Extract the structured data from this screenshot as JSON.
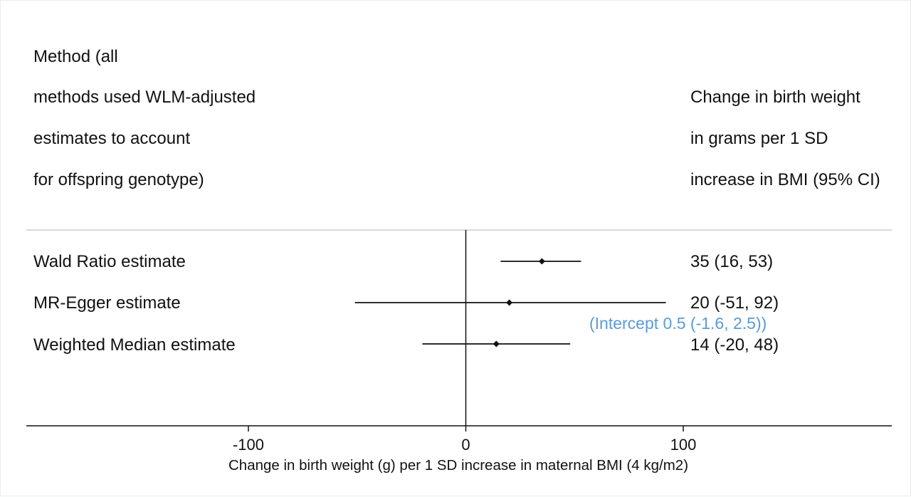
{
  "chart_data": {
    "type": "forest",
    "header_left": [
      "Method (all",
      "methods used WLM-adjusted",
      "estimates to account",
      "for offspring genotype)"
    ],
    "header_right": [
      "Change in birth weight",
      "in grams per 1 SD",
      "increase in BMI (95% CI)"
    ],
    "rows": [
      {
        "label": "Wald Ratio estimate",
        "estimate": 35,
        "ci_low": 16,
        "ci_high": 53,
        "text": "35 (16, 53)"
      },
      {
        "label": "MR-Egger estimate",
        "estimate": 20,
        "ci_low": -51,
        "ci_high": 92,
        "text": "20 (-51, 92)",
        "note": "(Intercept 0.5 (-1.6, 2.5))"
      },
      {
        "label": "Weighted Median estimate",
        "estimate": 14,
        "ci_low": -20,
        "ci_high": 48,
        "text": "14 (-20, 48)"
      }
    ],
    "x_ticks": [
      -100,
      0,
      100
    ],
    "x_tick_labels": [
      "-100",
      "0",
      "100"
    ],
    "xlim": [
      -200,
      200
    ],
    "reference_line": 0,
    "xlabel": "Change in birth weight (g) per 1 SD increase in maternal BMI (4 kg/m2)",
    "colors": {
      "text": "#111111",
      "note": "#5b9bd5",
      "rule": "#cccccc"
    }
  }
}
